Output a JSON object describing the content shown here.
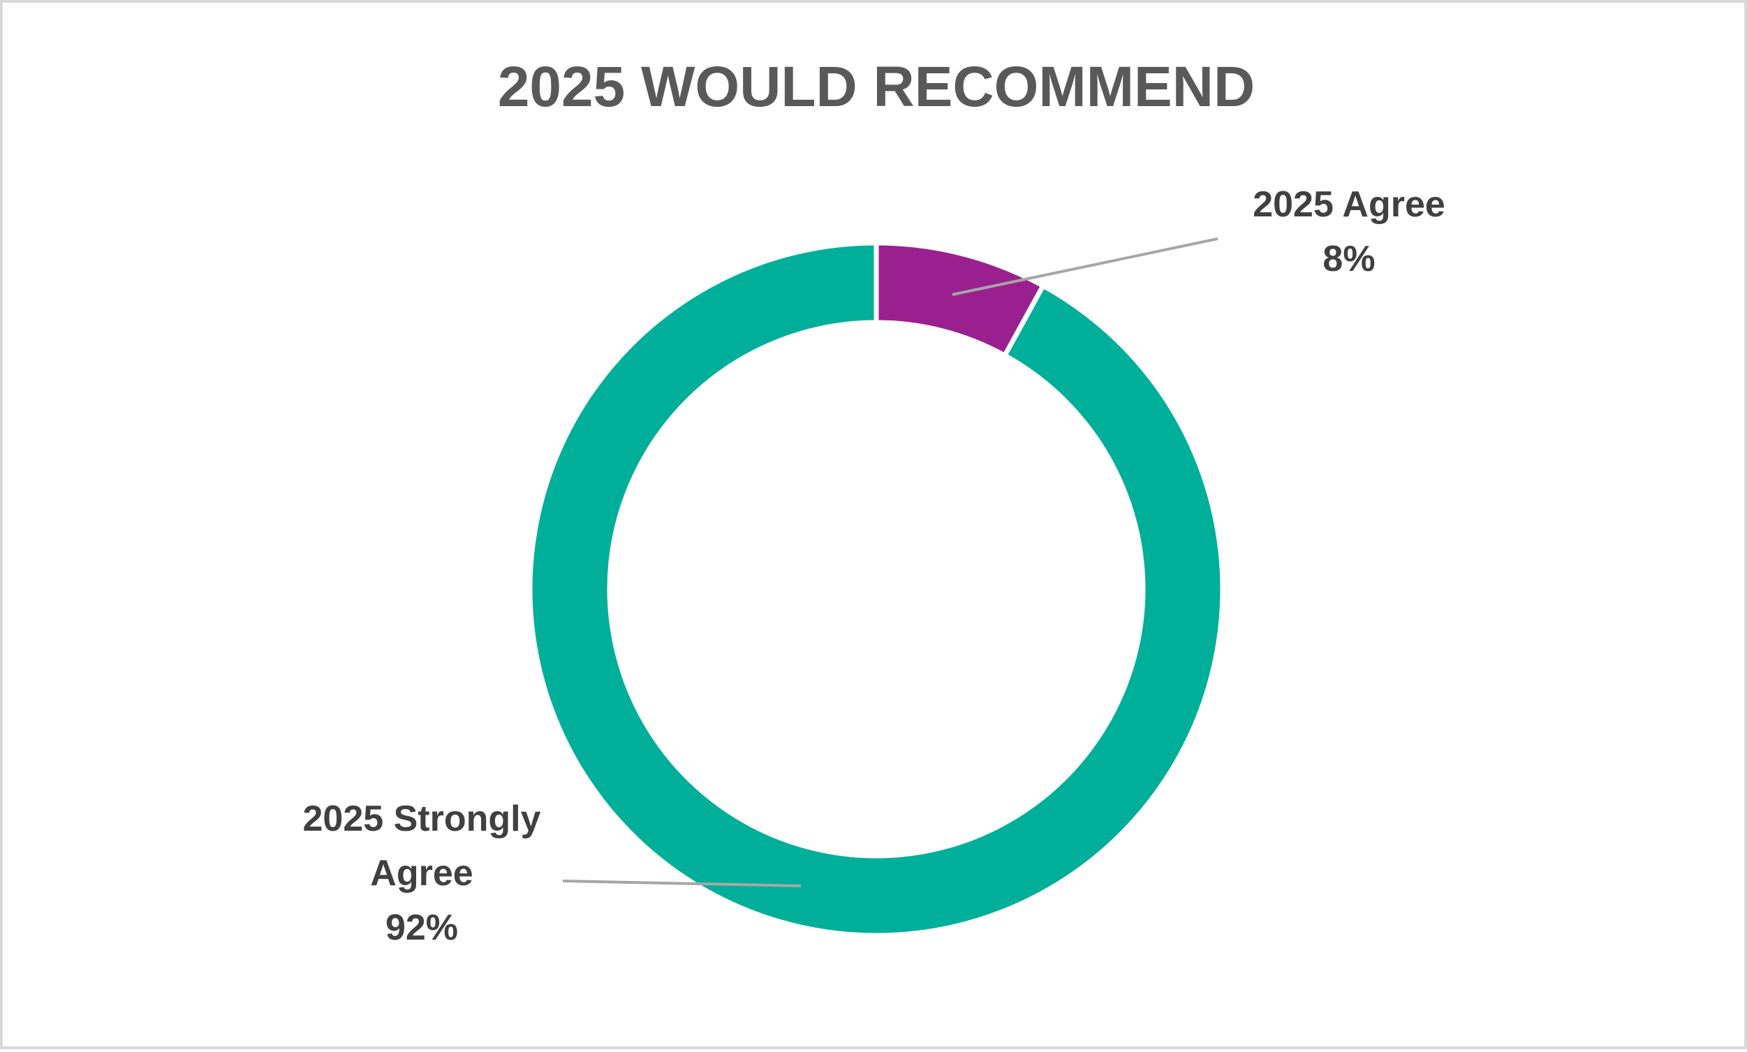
{
  "chart_data": {
    "type": "pie",
    "variant": "doughnut",
    "title": "2025 WOULD RECOMMEND",
    "categories": [
      "2025 Agree",
      "2025 Strongly Agree"
    ],
    "values": [
      8,
      92
    ],
    "value_suffix": "%",
    "colors": [
      "#9B208F",
      "#00AF9A"
    ],
    "labels": [
      {
        "lines": [
          "2025 Agree",
          "8%"
        ]
      },
      {
        "lines": [
          "2025 Strongly",
          "Agree",
          "92%"
        ]
      }
    ],
    "legend": "none"
  }
}
